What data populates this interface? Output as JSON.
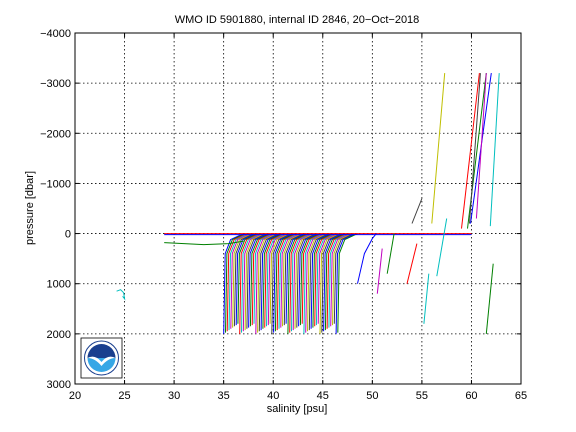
{
  "chart_data": {
    "type": "line",
    "title": "WMO ID 5901880, internal ID 2846, 20−Oct−2018",
    "xlabel": "salinity [psu]",
    "ylabel": "pressure [dbar]",
    "xlim": [
      20,
      65
    ],
    "ylim": [
      -4000,
      3000
    ],
    "y_reversed": true,
    "grid": true,
    "x_ticks": [
      20,
      25,
      30,
      35,
      40,
      45,
      50,
      55,
      60,
      65
    ],
    "y_ticks": [
      -4000,
      -3000,
      -2000,
      -1000,
      0,
      1000,
      2000,
      3000
    ],
    "x_tick_labels": [
      "20",
      "25",
      "30",
      "35",
      "40",
      "45",
      "50",
      "55",
      "60",
      "65"
    ],
    "y_tick_labels": [
      "−4000",
      "−3000",
      "−2000",
      "−1000",
      "0",
      "1000",
      "2000",
      "3000"
    ],
    "colors": [
      "#0000ff",
      "#008000",
      "#ff0000",
      "#00bfbf",
      "#bf00bf",
      "#bfbf00",
      "#404040"
    ],
    "profile_cluster": {
      "salinity_start": 35.0,
      "salinity_end": 46.5,
      "salinity_step": 0.18,
      "surface_pressure": 0,
      "bottom_pressure": 2000
    },
    "series": [
      {
        "color": "#00bfbf",
        "x": [
          24.2,
          24.6,
          24.9,
          25.0,
          24.8
        ],
        "y": [
          1150,
          1120,
          1180,
          1300,
          1250
        ]
      },
      {
        "color": "#008000",
        "x": [
          29.0,
          33.0,
          35.5,
          37.0
        ],
        "y": [
          180,
          220,
          200,
          150
        ]
      },
      {
        "color": "#ff0000",
        "x": [
          29.0,
          40.0,
          52.0,
          60.0
        ],
        "y": [
          0,
          0,
          0,
          0
        ]
      },
      {
        "color": "#0000ff",
        "x": [
          29.0,
          45.0,
          60.0
        ],
        "y": [
          20,
          20,
          20
        ]
      },
      {
        "color": "#bfbf00",
        "x": [
          56.0,
          57.3
        ],
        "y": [
          -200,
          -3200
        ]
      },
      {
        "color": "#00bfbf",
        "x": [
          56.5,
          57.5
        ],
        "y": [
          850,
          -300
        ]
      },
      {
        "color": "#008000",
        "x": [
          59.6,
          61.5
        ],
        "y": [
          -100,
          -3200
        ]
      },
      {
        "color": "#0000ff",
        "x": [
          59.9,
          62.0
        ],
        "y": [
          -200,
          -3200
        ]
      },
      {
        "color": "#ff0000",
        "x": [
          59.0,
          60.8
        ],
        "y": [
          -100,
          -3200
        ]
      },
      {
        "color": "#404040",
        "x": [
          59.8,
          60.9
        ],
        "y": [
          -200,
          -3200
        ]
      },
      {
        "color": "#bf00bf",
        "x": [
          60.5,
          61.5
        ],
        "y": [
          -300,
          -3200
        ]
      },
      {
        "color": "#00bfbf",
        "x": [
          61.9,
          62.8
        ],
        "y": [
          -150,
          -3200
        ]
      },
      {
        "color": "#008000",
        "x": [
          61.5,
          62.2
        ],
        "y": [
          2000,
          600
        ]
      },
      {
        "color": "#00bfbf",
        "x": [
          55.2,
          55.7
        ],
        "y": [
          1800,
          800
        ]
      },
      {
        "color": "#ff0000",
        "x": [
          53.5,
          54.5
        ],
        "y": [
          1000,
          200
        ]
      },
      {
        "color": "#008000",
        "x": [
          51.5,
          52.2
        ],
        "y": [
          800,
          0
        ]
      },
      {
        "color": "#bf00bf",
        "x": [
          50.5,
          51.0
        ],
        "y": [
          1200,
          300
        ]
      },
      {
        "color": "#0000ff",
        "x": [
          48.5,
          49.2,
          50.0,
          50.4
        ],
        "y": [
          1000,
          400,
          100,
          0
        ]
      },
      {
        "color": "#404040",
        "x": [
          54.0,
          55.0
        ],
        "y": [
          -200,
          -700
        ]
      }
    ]
  },
  "logo": {
    "text": "NOAA",
    "colors": {
      "ring": "#ffffff",
      "top": "#1a3f8f",
      "bottom": "#36a7e6",
      "bird": "#ffffff"
    }
  }
}
